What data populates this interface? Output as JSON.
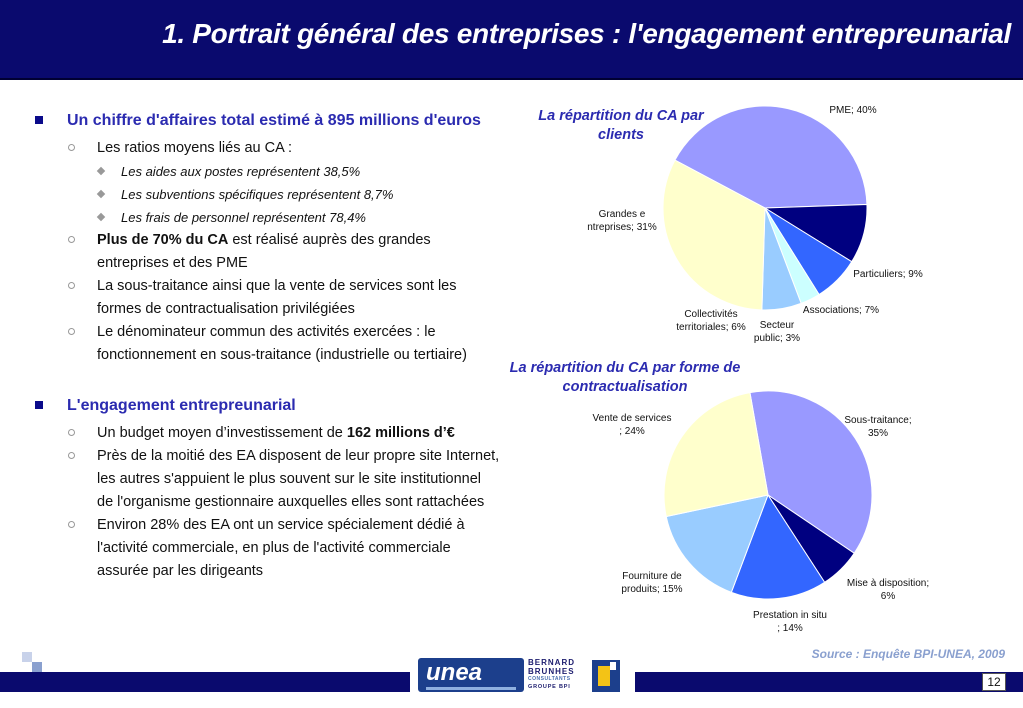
{
  "header": {
    "title": "1. Portrait général des entreprises : l'engagement entrepreunarial"
  },
  "content": {
    "section1": {
      "heading": "Un chiffre d'affaires total estimé à 895 millions d'euros",
      "items": [
        {
          "text": "Les ratios moyens liés au CA :",
          "subitems": [
            "Les aides aux postes représentent 38,5%",
            "Les subventions spécifiques représentent 8,7%",
            "Les frais de personnel représentent 78,4%"
          ]
        },
        {
          "bold": "Plus de 70% du CA",
          "text": " est réalisé auprès des grandes entreprises et des PME"
        },
        {
          "text": "La sous-traitance ainsi que la vente de services sont les formes de contractualisation privilégiées"
        },
        {
          "text": "Le dénominateur commun des activités exercées : le fonctionnement en sous-traitance (industrielle ou tertiaire)"
        }
      ]
    },
    "section2": {
      "heading": "L'engagement entrepreunarial",
      "items": [
        {
          "text": "Un budget moyen d’investissement de ",
          "bold": "162 millions d’€"
        },
        {
          "text": "Près de la moitié des EA disposent de leur propre site Internet, les autres s'appuient le plus souvent sur le site institutionnel de l'organisme gestionnaire auxquelles elles sont rattachées"
        },
        {
          "text": "Environ 28% des EA ont un service spécialement dédié à l'activité commerciale, en plus de l'activité commerciale assurée par les dirigeants"
        }
      ]
    }
  },
  "chart_data": [
    {
      "type": "pie",
      "title": "La répartition du CA par clients",
      "slices": [
        {
          "label": "PME; 40%",
          "value": 40,
          "color": "#9999ff"
        },
        {
          "label": "Particuliers; 9%",
          "value": 9,
          "color": "#000080"
        },
        {
          "label": "Associations; 7%",
          "value": 7,
          "color": "#3366ff"
        },
        {
          "label": "Secteur public; 3%",
          "value": 3,
          "color": "#ccffff"
        },
        {
          "label": "Collectivités territoriales; 6%",
          "value": 6,
          "color": "#99ccff"
        },
        {
          "label": "Grandes entreprises; 31%",
          "value": 31,
          "color": "#ffffcc"
        }
      ]
    },
    {
      "type": "pie",
      "title": "La répartition du CA par forme de contractualisation",
      "slices": [
        {
          "label": "Sous-traitance; 35%",
          "value": 35,
          "color": "#9999ff"
        },
        {
          "label": "Mise à disposition; 6%",
          "value": 6,
          "color": "#000080"
        },
        {
          "label": "Prestation in situ; 14%",
          "value": 14,
          "color": "#3366ff"
        },
        {
          "label": "Fourniture de produits; 15%",
          "value": 15,
          "color": "#99ccff"
        },
        {
          "label": "Vente de services; 24%",
          "value": 24,
          "color": "#ffffcc"
        }
      ]
    }
  ],
  "footer": {
    "source": "Source : Enquête BPI-UNEA, 2009",
    "page_number": "12",
    "logo_unea": "unea",
    "logo_bb_line1": "BERNARD",
    "logo_bb_line2": "BRUNHES",
    "logo_bb_line3": "CONSULTANTS",
    "logo_bb_line4": "GROUPE BPI"
  }
}
